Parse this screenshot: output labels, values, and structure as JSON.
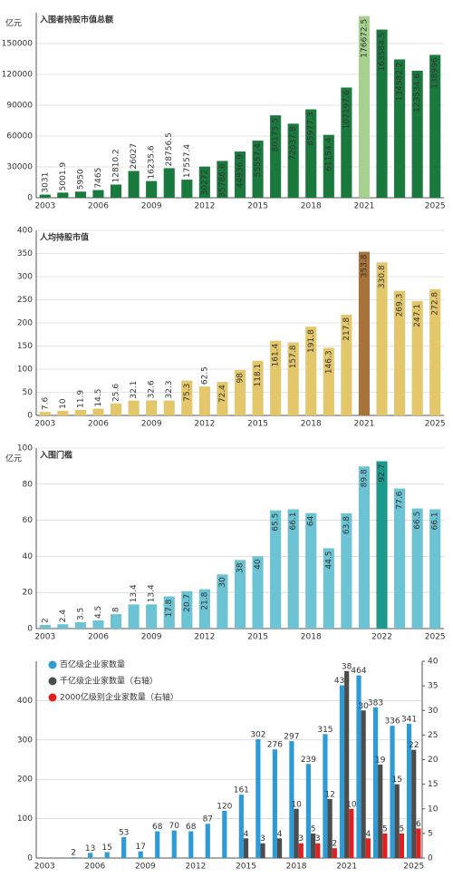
{
  "chart_data": [
    {
      "type": "bar",
      "title": "入围者持股市值总额",
      "y_unit": "亿元",
      "title_color": "#1a7a3e",
      "categories": [
        "2003",
        null,
        null,
        "2006",
        null,
        null,
        "2009",
        null,
        null,
        "2012",
        null,
        null,
        "2015",
        null,
        null,
        "2018",
        null,
        null,
        "2021",
        null,
        null,
        null,
        "2025"
      ],
      "values": [
        3031,
        5001.9,
        5950,
        7465,
        12810.2,
        26027,
        16235.6,
        28756.5,
        17557.4,
        30272,
        35786.6,
        44936.9,
        55557.4,
        80175.5,
        72037.8,
        85977.3,
        61154.4,
        107197.6,
        176672.5,
        163584.5,
        134582.2,
        123534.6,
        138996
      ],
      "colors": [
        "#1a7a3e",
        "#1a7a3e",
        "#1a7a3e",
        "#1a7a3e",
        "#1a7a3e",
        "#1a7a3e",
        "#1a7a3e",
        "#1a7a3e",
        "#1a7a3e",
        "#1a7a3e",
        "#1a7a3e",
        "#1a7a3e",
        "#1a7a3e",
        "#1a7a3e",
        "#1a7a3e",
        "#1a7a3e",
        "#1a7a3e",
        "#1a7a3e",
        "#a6d08e",
        "#1a7a3e",
        "#1a7a3e",
        "#1a7a3e",
        "#1a7a3e"
      ],
      "ylim": [
        0,
        180000
      ],
      "yticks": [
        0,
        30000,
        60000,
        90000,
        120000,
        150000
      ],
      "grid": true
    },
    {
      "type": "bar",
      "title": "人均持股市值",
      "title_color": "#d9b94a",
      "categories": [
        "2003",
        null,
        null,
        "2006",
        null,
        null,
        "2009",
        null,
        null,
        "2012",
        null,
        null,
        "2015",
        null,
        null,
        "2018",
        null,
        null,
        "2021",
        null,
        null,
        null,
        "2025"
      ],
      "values": [
        7.6,
        10,
        11.9,
        14.5,
        25.6,
        32.1,
        32.6,
        32.3,
        75.3,
        62.5,
        72.4,
        98,
        118.1,
        161.4,
        157.8,
        191.8,
        146.3,
        217.8,
        353.8,
        330.8,
        269.3,
        247.1,
        272.8
      ],
      "colors": [
        "#e3c76a",
        "#e3c76a",
        "#e3c76a",
        "#e3c76a",
        "#e3c76a",
        "#e3c76a",
        "#e3c76a",
        "#e3c76a",
        "#e3c76a",
        "#e3c76a",
        "#e3c76a",
        "#e3c76a",
        "#e3c76a",
        "#e3c76a",
        "#e3c76a",
        "#e3c76a",
        "#e3c76a",
        "#e3c76a",
        "#a8733a",
        "#e3c76a",
        "#e3c76a",
        "#e3c76a",
        "#e3c76a"
      ],
      "ylim": [
        0,
        400
      ],
      "yticks": [
        0,
        50,
        100,
        150,
        200,
        250,
        300,
        350,
        400
      ],
      "grid": true
    },
    {
      "type": "bar",
      "title": "入围门槛",
      "y_unit": "亿元",
      "title_color": "#5bbfd1",
      "categories": [
        "2003",
        null,
        null,
        "2006",
        null,
        null,
        "2009",
        null,
        null,
        "2012",
        null,
        null,
        "2015",
        null,
        null,
        "2018",
        null,
        null,
        null,
        "2022",
        null,
        null,
        "2025"
      ],
      "values": [
        2,
        2.4,
        3.5,
        4.5,
        8,
        13.4,
        13.4,
        17.8,
        20.7,
        21.8,
        30,
        38,
        40,
        65.5,
        66.1,
        64,
        44.5,
        63.8,
        89.8,
        92.7,
        77.6,
        66.5,
        66.1
      ],
      "colors": [
        "#6cc3d3",
        "#6cc3d3",
        "#6cc3d3",
        "#6cc3d3",
        "#6cc3d3",
        "#6cc3d3",
        "#6cc3d3",
        "#6cc3d3",
        "#6cc3d3",
        "#6cc3d3",
        "#6cc3d3",
        "#6cc3d3",
        "#6cc3d3",
        "#6cc3d3",
        "#6cc3d3",
        "#6cc3d3",
        "#6cc3d3",
        "#6cc3d3",
        "#6cc3d3",
        "#1a9a8c",
        "#6cc3d3",
        "#6cc3d3",
        "#6cc3d3"
      ],
      "ylim": [
        0,
        100
      ],
      "yticks": [
        0,
        20,
        40,
        60,
        80,
        100
      ],
      "grid": true
    },
    {
      "type": "grouped_bar",
      "categories": [
        "2003",
        null,
        null,
        "2006",
        null,
        null,
        "2009",
        null,
        null,
        "2012",
        null,
        null,
        "2015",
        null,
        null,
        "2018",
        null,
        null,
        "2021",
        null,
        null,
        null,
        "2025"
      ],
      "series": [
        {
          "name": "百亿级企业家数量",
          "color": "#2e9bd6",
          "values": [
            null,
            null,
            2,
            13,
            15,
            53,
            17,
            68,
            70,
            68,
            87,
            120,
            161,
            302,
            276,
            297,
            239,
            315,
            439,
            464,
            383,
            336,
            341
          ]
        },
        {
          "name": "千亿级企业家数量（右轴）",
          "color": "#4d4d4d",
          "axis": "y2",
          "values": [
            null,
            null,
            null,
            null,
            null,
            null,
            null,
            null,
            null,
            null,
            null,
            null,
            4,
            3,
            4,
            10,
            5,
            12,
            38,
            30,
            19,
            15,
            22
          ]
        },
        {
          "name": "2000亿级别企业家数量（右轴）",
          "color": "#e02020",
          "axis": "y2",
          "values": [
            null,
            null,
            null,
            null,
            null,
            null,
            null,
            null,
            null,
            null,
            null,
            null,
            null,
            null,
            null,
            3,
            3,
            2,
            10,
            4,
            5,
            5,
            6
          ]
        }
      ],
      "ylim": [
        0,
        500
      ],
      "yticks": [
        0,
        100,
        200,
        300,
        400
      ],
      "y2lim": [
        0,
        40
      ],
      "y2ticks": [
        0,
        5,
        10,
        15,
        20,
        25,
        30,
        35,
        40
      ],
      "grid": true
    }
  ]
}
